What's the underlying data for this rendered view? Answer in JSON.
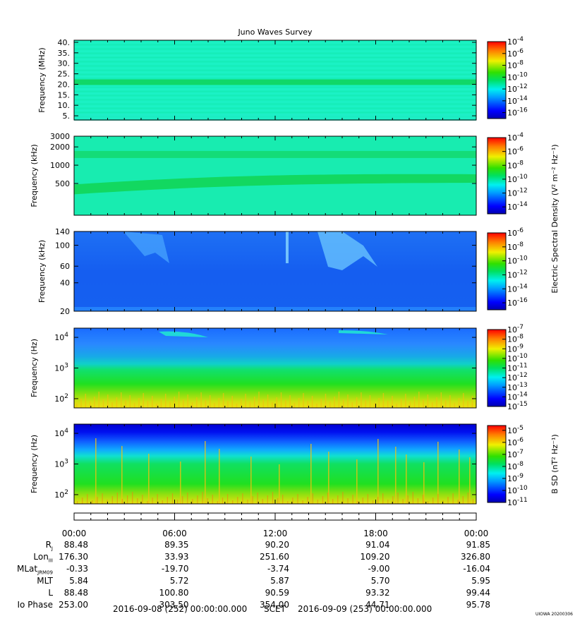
{
  "title": "Juno Waves Survey",
  "footer": {
    "left": "2016-09-08 (252) 00:00:00.000",
    "mid": "SCET",
    "right": "2016-09-09 (253) 00:00:00.000",
    "stamp": "UIOWA 20200306"
  },
  "chart_data": [
    {
      "type": "heatmap",
      "title": "Juno Waves Survey",
      "ylabel": "Frequency (MHz)",
      "yticks": [
        "40.",
        "35.",
        "30.",
        "25.",
        "20.",
        "15.",
        "10.",
        "5."
      ],
      "ytick_values": [
        40,
        35,
        30,
        25,
        20,
        15,
        10,
        5
      ],
      "ylim": [
        3,
        41
      ],
      "cbar_ticks": [
        "-4",
        "-6",
        "-8",
        "-10",
        "-12",
        "-14",
        "-16"
      ],
      "cbar_range": [
        -17,
        -4
      ],
      "features": {
        "band_at": 21,
        "base_color": "#18f0b8"
      }
    },
    {
      "type": "heatmap",
      "ylabel": "Frequency (kHz)",
      "yscale": "log",
      "yticks": [
        "3000",
        "2000",
        "1000",
        "500"
      ],
      "ytick_values": [
        3000,
        2000,
        1000,
        500
      ],
      "ylim": [
        150,
        3000
      ],
      "cbar_ticks": [
        "-4",
        "-6",
        "-8",
        "-10",
        "-12",
        "-14"
      ],
      "cbar_range": [
        -15,
        -4
      ],
      "cbar_label": "Electric Spectral Density (V² m⁻² Hz⁻¹)",
      "features": {
        "band_at": 1500,
        "rising_band": [
          400,
          620
        ]
      }
    },
    {
      "type": "heatmap",
      "ylabel": "Frequency (kHz)",
      "yscale": "log",
      "yticks": [
        "140",
        "100",
        "60",
        "40",
        "20"
      ],
      "ytick_values": [
        140,
        100,
        60,
        40,
        20
      ],
      "ylim": [
        20,
        140
      ],
      "cbar_ticks": [
        "-6",
        "-8",
        "-10",
        "-12",
        "-14",
        "-16"
      ],
      "cbar_range": [
        -17,
        -6
      ]
    },
    {
      "type": "heatmap",
      "ylabel": "Frequency (Hz)",
      "yscale": "log",
      "yticks": [
        "10^4",
        "10^3",
        "10^2"
      ],
      "ytick_values": [
        10000,
        1000,
        100
      ],
      "ylim": [
        50,
        20000
      ],
      "cbar_ticks": [
        "-7",
        "-8",
        "-9",
        "-10",
        "-11",
        "-12",
        "-13",
        "-14",
        "-15"
      ],
      "cbar_range": [
        -15,
        -7
      ]
    },
    {
      "type": "heatmap",
      "ylabel": "Frequency (Hz)",
      "yscale": "log",
      "yticks": [
        "10^4",
        "10^3",
        "10^2"
      ],
      "ytick_values": [
        10000,
        1000,
        100
      ],
      "ylim": [
        50,
        20000
      ],
      "cbar_ticks": [
        "-5",
        "-6",
        "-7",
        "-8",
        "-9",
        "-10",
        "-11"
      ],
      "cbar_range": [
        -11,
        -4.6
      ],
      "cbar_label": "B SD (nT² Hz⁻¹)"
    }
  ],
  "time_axis": {
    "ticks": [
      "00:00",
      "06:00",
      "12:00",
      "18:00",
      "00:00"
    ]
  },
  "ephemeris": {
    "rows": [
      {
        "name": "R",
        "sub": "J",
        "values": [
          "88.48",
          "89.35",
          "90.20",
          "91.04",
          "91.85"
        ]
      },
      {
        "name": "Lon",
        "sub": "III",
        "values": [
          "176.30",
          "33.93",
          "251.60",
          "109.20",
          "326.80"
        ]
      },
      {
        "name": "MLat",
        "sub": "JRM09",
        "values": [
          "-0.33",
          "-19.70",
          "-3.74",
          "-9.00",
          "-16.04"
        ]
      },
      {
        "name": "MLT",
        "sub": "",
        "values": [
          "5.84",
          "5.72",
          "5.87",
          "5.70",
          "5.95"
        ]
      },
      {
        "name": "L",
        "sub": "",
        "values": [
          "88.48",
          "100.80",
          "90.59",
          "93.32",
          "99.44"
        ]
      },
      {
        "name": "Io Phase",
        "sub": "",
        "values": [
          "253.00",
          "303.50",
          "354.00",
          "44.71",
          "95.78"
        ]
      }
    ]
  }
}
